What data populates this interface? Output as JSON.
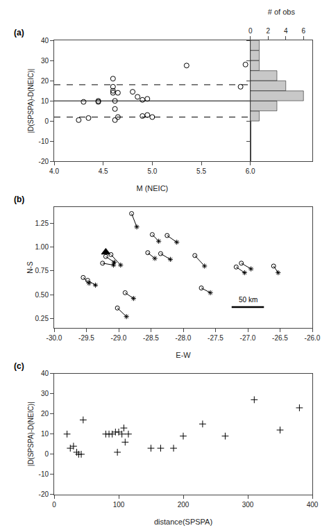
{
  "chart_data": [
    {
      "type": "scatter",
      "title": "(a)",
      "x": [
        4.25,
        4.3,
        4.35,
        4.45,
        4.45,
        4.6,
        4.6,
        4.6,
        4.6,
        4.62,
        4.62,
        4.62,
        4.65,
        4.65,
        4.8,
        4.85,
        4.9,
        4.9,
        4.95,
        4.95,
        5.0,
        5.35,
        5.9,
        5.95
      ],
      "y": [
        0.5,
        9.5,
        1.5,
        10.0,
        9.5,
        21.0,
        17.0,
        15.0,
        14.0,
        10.0,
        6.0,
        0.5,
        14.0,
        2.0,
        14.5,
        12.0,
        2.5,
        10.5,
        11.0,
        3.0,
        2.0,
        27.5,
        17.0,
        28.0
      ],
      "marker": "circle-open",
      "color": "#000000",
      "reference_lines": [
        {
          "y": 10.0,
          "line_style": "solid",
          "color": "#000000"
        },
        {
          "y": 18.0,
          "line_style": "dashed",
          "color": "#000000"
        },
        {
          "y": 2.0,
          "line_style": "dashed",
          "color": "#000000"
        }
      ],
      "xlabel": "M (NEIC)",
      "ylabel": "|D(SPSPA)-D(NEIC)|",
      "xlim": [
        4.0,
        6.0
      ],
      "ylim": [
        -20,
        40
      ],
      "xticks": [
        {
          "value": 4.0,
          "label": "4.0"
        },
        4.5,
        {
          "value": 5.0,
          "label": "5.0"
        },
        5.5,
        {
          "value": 6.0,
          "label": "6.0"
        }
      ],
      "yticks": [
        -20,
        -10,
        0,
        10,
        20,
        30,
        40
      ],
      "grid": false
    },
    {
      "type": "histogram",
      "orientation": "horizontal",
      "bins": [
        -20,
        -15,
        -10,
        -5,
        0,
        5,
        10,
        15,
        20,
        25,
        30,
        35,
        40
      ],
      "counts": [
        0,
        0,
        0,
        0,
        1,
        3,
        6,
        4,
        3,
        1,
        1,
        1
      ],
      "color": "#c8c8c8",
      "edge_color": "#000000",
      "xlabel": "# of obs",
      "xlim": [
        0,
        7
      ],
      "xticks": [
        0,
        2,
        4,
        6
      ],
      "ylim": [
        -20,
        40
      ],
      "yticks": [
        -20,
        -10,
        0,
        10,
        20,
        30,
        40
      ],
      "tick_labels": "x",
      "grid": false
    },
    {
      "type": "map",
      "title": "(b)",
      "series": [
        {
          "type": "segments",
          "color": "#000000",
          "start_marker": "circle-open",
          "end_marker": "asterisk-open",
          "x0": [
            -29.55,
            -29.48,
            -29.25,
            -29.2,
            -29.12,
            -29.02,
            -28.9,
            -28.8,
            -28.55,
            -28.48,
            -28.35,
            -28.25,
            -27.82,
            -27.72,
            -27.18,
            -27.1,
            -26.6
          ],
          "y0": [
            0.68,
            0.65,
            0.83,
            0.9,
            0.92,
            0.36,
            0.52,
            1.35,
            0.94,
            1.13,
            0.93,
            1.12,
            0.91,
            0.57,
            0.79,
            0.83,
            0.8
          ],
          "x1": [
            -29.46,
            -29.36,
            -29.08,
            -29.07,
            -28.97,
            -28.88,
            -28.77,
            -28.72,
            -28.44,
            -28.38,
            -28.2,
            -28.1,
            -27.67,
            -27.58,
            -27.05,
            -26.95,
            -26.53
          ],
          "y1": [
            0.62,
            0.6,
            0.81,
            0.84,
            0.81,
            0.27,
            0.46,
            1.21,
            0.88,
            1.06,
            0.87,
            1.05,
            0.8,
            0.52,
            0.73,
            0.77,
            0.73
          ]
        },
        {
          "type": "scatter",
          "marker": "triangle-up",
          "color": "#000000",
          "x": [
            -29.2
          ],
          "y": [
            0.945
          ]
        }
      ],
      "scale_bar": {
        "x": [
          -27.25,
          -26.75
        ],
        "y": 0.37,
        "label": "50 km",
        "color": "#000000"
      },
      "xlabel": "E-W",
      "ylabel": "N-S",
      "xlim": [
        -30.0,
        -26.0
      ],
      "ylim": [
        0.15,
        1.42
      ],
      "xticks": [
        {
          "value": -30.0,
          "label": "-30.0"
        },
        -29.5,
        {
          "value": -29.0,
          "label": "-29.0"
        },
        -28.5,
        {
          "value": -28.0,
          "label": "-28.0"
        },
        -27.5,
        {
          "value": -27.0,
          "label": "-27.0"
        },
        -26.5,
        {
          "value": -26.0,
          "label": "-26.0"
        }
      ],
      "yticks": [
        0.25,
        {
          "value": 0.5,
          "label": "0.50"
        },
        0.75,
        {
          "value": 1.0,
          "label": "1.00"
        },
        1.25
      ],
      "grid": false
    },
    {
      "type": "scatter",
      "title": "(c)",
      "x": [
        20,
        25,
        30,
        35,
        38,
        42,
        45,
        80,
        85,
        90,
        95,
        98,
        100,
        105,
        108,
        110,
        115,
        150,
        165,
        185,
        200,
        230,
        265,
        310,
        350,
        380
      ],
      "y": [
        10,
        3,
        4,
        1,
        0,
        0,
        17,
        10,
        10,
        10,
        11,
        1,
        11,
        10,
        13,
        6,
        10,
        3,
        3,
        3,
        9,
        15,
        9,
        27,
        12,
        23
      ],
      "marker": "cross-thin-open",
      "color": "#000000",
      "xlabel": "distance(SPSPA)",
      "ylabel": "|D(SPSPA)-D(NEIC)|",
      "xlim": [
        0,
        400
      ],
      "ylim": [
        -20,
        40
      ],
      "xticks": [
        0,
        100,
        200,
        300,
        400
      ],
      "yticks": [
        -20,
        -10,
        0,
        10,
        20,
        30,
        40
      ],
      "grid": false
    }
  ]
}
